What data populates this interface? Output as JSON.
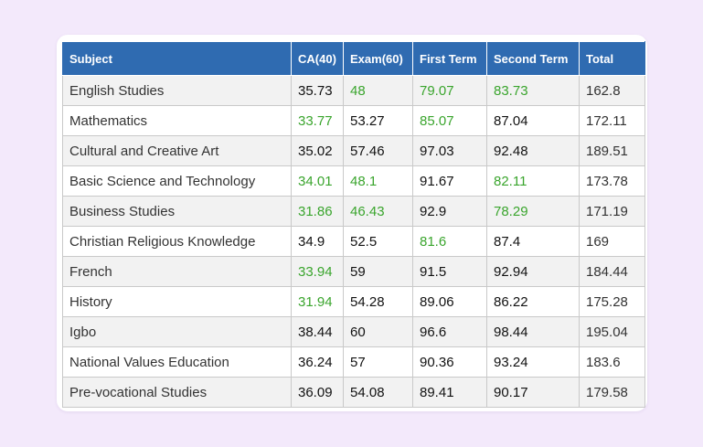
{
  "table": {
    "headers": [
      "Subject",
      "CA(40)",
      "Exam(60)",
      "First Term",
      "Second Term",
      "Total"
    ],
    "rows": [
      {
        "subject": "English Studies",
        "ca": "35.73",
        "exam": "48",
        "first": "79.07",
        "second": "83.73",
        "total": "162.8",
        "green": [
          false,
          true,
          true,
          true
        ]
      },
      {
        "subject": "Mathematics",
        "ca": "33.77",
        "exam": "53.27",
        "first": "85.07",
        "second": "87.04",
        "total": "172.11",
        "green": [
          true,
          false,
          true,
          false
        ]
      },
      {
        "subject": "Cultural and Creative Art",
        "ca": "35.02",
        "exam": "57.46",
        "first": "97.03",
        "second": "92.48",
        "total": "189.51",
        "green": [
          false,
          false,
          false,
          false
        ]
      },
      {
        "subject": "Basic Science and Technology",
        "ca": "34.01",
        "exam": "48.1",
        "first": "91.67",
        "second": "82.11",
        "total": "173.78",
        "green": [
          true,
          true,
          false,
          true
        ]
      },
      {
        "subject": "Business Studies",
        "ca": "31.86",
        "exam": "46.43",
        "first": "92.9",
        "second": "78.29",
        "total": "171.19",
        "green": [
          true,
          true,
          false,
          true
        ]
      },
      {
        "subject": "Christian Religious Knowledge",
        "ca": "34.9",
        "exam": "52.5",
        "first": "81.6",
        "second": "87.4",
        "total": "169",
        "green": [
          false,
          false,
          true,
          false
        ]
      },
      {
        "subject": "French",
        "ca": "33.94",
        "exam": "59",
        "first": "91.5",
        "second": "92.94",
        "total": "184.44",
        "green": [
          true,
          false,
          false,
          false
        ]
      },
      {
        "subject": "History",
        "ca": "31.94",
        "exam": "54.28",
        "first": "89.06",
        "second": "86.22",
        "total": "175.28",
        "green": [
          true,
          false,
          false,
          false
        ]
      },
      {
        "subject": "Igbo",
        "ca": "38.44",
        "exam": "60",
        "first": "96.6",
        "second": "98.44",
        "total": "195.04",
        "green": [
          false,
          false,
          false,
          false
        ]
      },
      {
        "subject": "National Values Education",
        "ca": "36.24",
        "exam": "57",
        "first": "90.36",
        "second": "93.24",
        "total": "183.6",
        "green": [
          false,
          false,
          false,
          false
        ]
      },
      {
        "subject": "Pre-vocational Studies",
        "ca": "36.09",
        "exam": "54.08",
        "first": "89.41",
        "second": "90.17",
        "total": "179.58",
        "green": [
          false,
          false,
          false,
          false
        ]
      }
    ]
  },
  "colors": {
    "header_bg": "#2f6bb1",
    "highlight_green": "#3aa52d",
    "page_bg": "#f3e9fb"
  }
}
